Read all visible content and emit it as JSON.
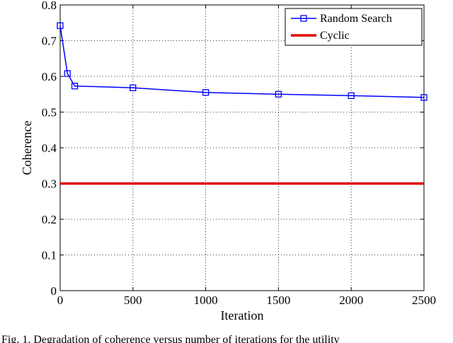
{
  "chart_data": {
    "type": "line",
    "xlabel": "Iteration",
    "ylabel": "Coherence",
    "xlim": [
      0,
      2500
    ],
    "ylim": [
      0,
      0.8
    ],
    "xticks": [
      "0",
      "500",
      "1000",
      "1500",
      "2000",
      "2500"
    ],
    "yticks": [
      "0",
      "0.1",
      "0.2",
      "0.3",
      "0.4",
      "0.5",
      "0.6",
      "0.7",
      "0.8"
    ],
    "grid": true,
    "legend_position": "top-right",
    "series": [
      {
        "name": "Random Search",
        "color": "#0000ff",
        "marker": "square",
        "x": [
          0,
          50,
          100,
          500,
          1000,
          1500,
          2000,
          2500
        ],
        "y": [
          0.742,
          0.608,
          0.573,
          0.568,
          0.555,
          0.55,
          0.546,
          0.541
        ]
      },
      {
        "name": "Cyclic",
        "color": "#e00000",
        "marker": "none",
        "x": [
          0,
          2500
        ],
        "y": [
          0.3,
          0.3
        ]
      }
    ]
  },
  "caption": "Fig. 1.    Degradation of coherence versus number of iterations for the utility"
}
